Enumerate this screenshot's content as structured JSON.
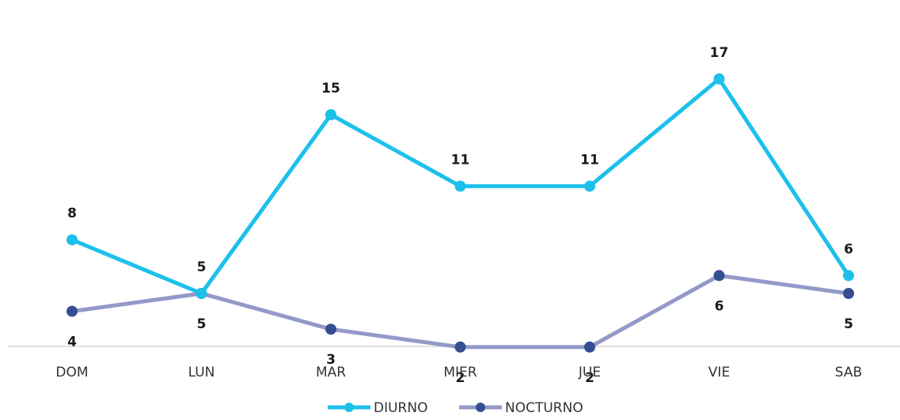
{
  "chart_data": {
    "type": "line",
    "title": "",
    "xlabel": "",
    "ylabel": "",
    "categories": [
      "DOM",
      "LUN",
      "MAR",
      "MIER",
      "JUE",
      "VIE",
      "SAB"
    ],
    "ylim": [
      0,
      19
    ],
    "grid": false,
    "legend_position": "bottom",
    "series": [
      {
        "name": "DIURNO",
        "values": [
          8,
          5,
          15,
          11,
          11,
          17,
          6
        ],
        "color": "#1cc0ea",
        "marker_color": "#1cc0ea",
        "label_position": "above"
      },
      {
        "name": "NOCTURNO",
        "values": [
          4,
          5,
          3,
          2,
          2,
          6,
          5
        ],
        "color": "#9399c8",
        "marker_color": "#344e91",
        "label_position": "below"
      }
    ]
  }
}
